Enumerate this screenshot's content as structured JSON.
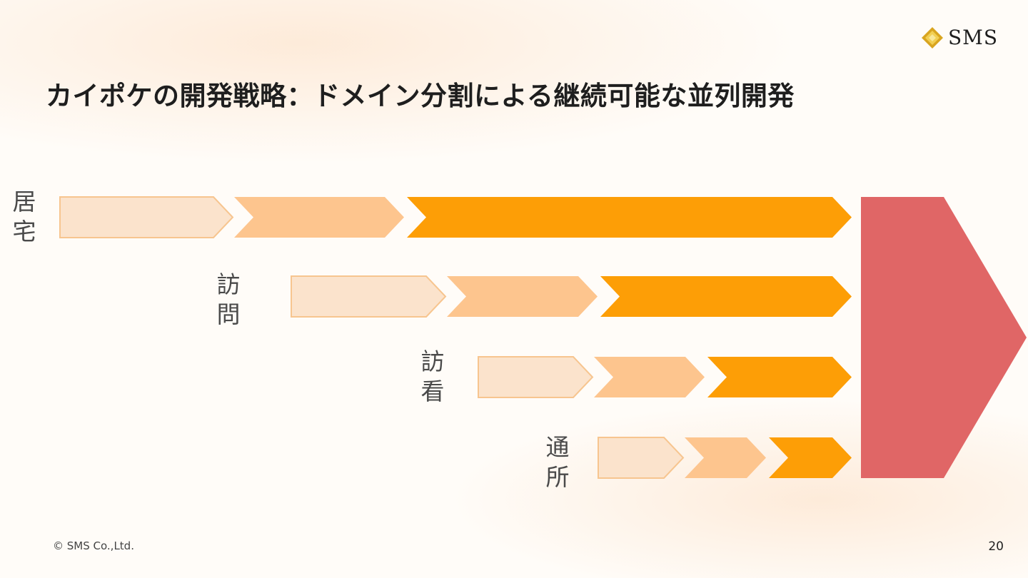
{
  "title": "カイポケの開発戦略：ドメイン分割による継続可能な並列開発",
  "logo": {
    "text": "SMS"
  },
  "lanes": [
    {
      "label": "居\n宅"
    },
    {
      "label": "訪\n問"
    },
    {
      "label": "訪\n看"
    },
    {
      "label": "通\n所"
    }
  ],
  "colors": {
    "stage1_fill": "#fbe3cc",
    "stage1_border": "#f7c58f",
    "stage2": "#fdc58e",
    "stage3": "#fd9e06",
    "target": "#e06666"
  },
  "footer": {
    "copyright": "© SMS Co.,Ltd.",
    "page": "20"
  }
}
